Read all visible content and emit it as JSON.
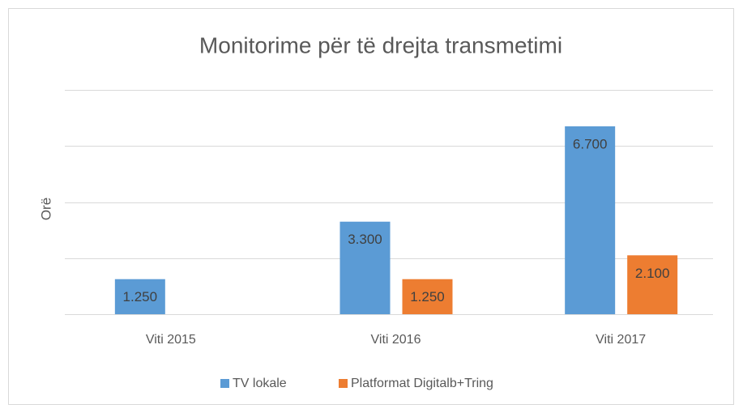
{
  "chart_data": {
    "type": "bar",
    "title": "Monitorime për të drejta transmetimi",
    "y_label": "Orë",
    "categories": [
      "Viti 2015",
      "Viti 2016",
      "Viti 2017"
    ],
    "series": [
      {
        "name": "TV lokale",
        "color": "#5b9bd5",
        "values": [
          1250,
          3300,
          6700
        ],
        "value_labels": [
          "1.250",
          "3.300",
          "6.700"
        ]
      },
      {
        "name": "Platformat Digitalb+Tring",
        "color": "#ed7d31",
        "values": [
          null,
          1250,
          2100
        ],
        "value_labels": [
          null,
          "1.250",
          "2.100"
        ]
      }
    ],
    "ylim": [
      0,
      8000
    ],
    "yticks": [
      0,
      2000,
      4000,
      6000,
      8000
    ],
    "grid": true,
    "legend": "bottom"
  }
}
